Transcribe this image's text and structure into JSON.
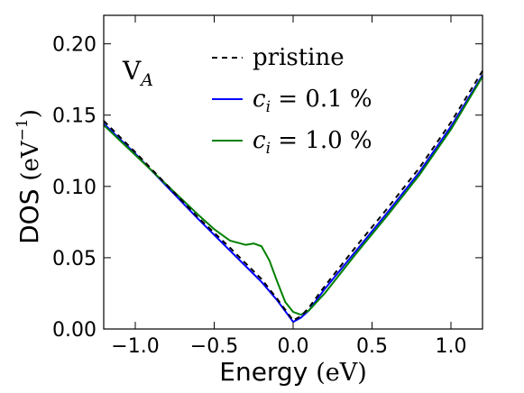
{
  "chart_data": {
    "type": "line",
    "xlabel": "Energy (eV)",
    "ylabel": "DOS (eV⁻¹)",
    "xlim": [
      -1.2,
      1.2
    ],
    "ylim": [
      0.0,
      0.22
    ],
    "x_ticks": [
      -1.0,
      -0.5,
      0.0,
      0.5,
      1.0
    ],
    "x_tick_labels": [
      "−1.0",
      "−0.5",
      "0.0",
      "0.5",
      "1.0"
    ],
    "y_ticks": [
      0.0,
      0.05,
      0.1,
      0.15,
      0.2
    ],
    "y_tick_labels": [
      "0.00",
      "0.05",
      "0.10",
      "0.15",
      "0.20"
    ],
    "annotation": "V_A",
    "legend_position": "top-right",
    "grid": false,
    "series": [
      {
        "name": "pristine",
        "color": "#000000",
        "style": "dashed",
        "x": [
          -1.2,
          -1.0,
          -0.8,
          -0.6,
          -0.4,
          -0.2,
          -0.1,
          0.0,
          0.05,
          0.1,
          0.2,
          0.4,
          0.6,
          0.8,
          1.0,
          1.2
        ],
        "y": [
          0.146,
          0.124,
          0.101,
          0.078,
          0.057,
          0.035,
          0.021,
          0.006,
          0.009,
          0.015,
          0.03,
          0.058,
          0.085,
          0.113,
          0.145,
          0.181
        ]
      },
      {
        "name": "c_i = 0.1 %",
        "color": "#0000ff",
        "style": "solid",
        "x": [
          -1.2,
          -1.0,
          -0.8,
          -0.6,
          -0.4,
          -0.2,
          -0.1,
          0.0,
          0.05,
          0.1,
          0.2,
          0.4,
          0.6,
          0.8,
          1.0,
          1.2
        ],
        "y": [
          0.144,
          0.123,
          0.1,
          0.077,
          0.055,
          0.033,
          0.02,
          0.005,
          0.008,
          0.013,
          0.028,
          0.055,
          0.082,
          0.11,
          0.142,
          0.178
        ]
      },
      {
        "name": "c_i = 1.0 %",
        "color": "#008000",
        "style": "solid",
        "x": [
          -1.2,
          -1.0,
          -0.8,
          -0.6,
          -0.5,
          -0.4,
          -0.3,
          -0.25,
          -0.2,
          -0.15,
          -0.1,
          -0.05,
          0.0,
          0.05,
          0.1,
          0.2,
          0.4,
          0.6,
          0.8,
          1.0,
          1.2
        ],
        "y": [
          0.143,
          0.122,
          0.101,
          0.08,
          0.07,
          0.062,
          0.059,
          0.06,
          0.058,
          0.048,
          0.033,
          0.019,
          0.012,
          0.01,
          0.013,
          0.025,
          0.053,
          0.08,
          0.108,
          0.14,
          0.177
        ]
      }
    ]
  }
}
